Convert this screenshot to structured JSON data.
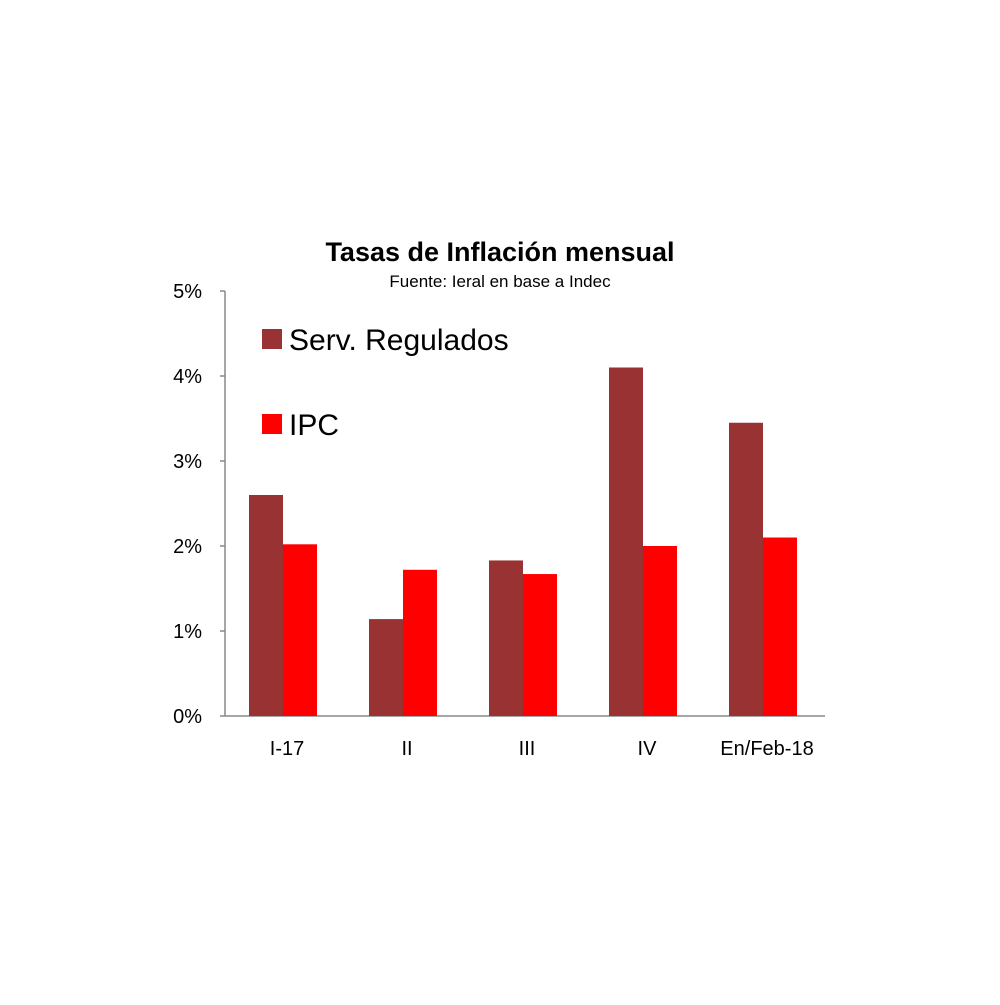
{
  "chart_data": {
    "type": "bar",
    "title": "Tasas de Inflación mensual",
    "subtitle": "Fuente: Ieral en base a Indec",
    "categories": [
      "I-17",
      "II",
      "III",
      "IV",
      "En/Feb-18"
    ],
    "series": [
      {
        "name": "Serv. Regulados",
        "color": "#993333",
        "values": [
          2.6,
          1.14,
          1.83,
          4.1,
          3.45
        ]
      },
      {
        "name": "IPC",
        "color": "#ff0000",
        "values": [
          2.02,
          1.72,
          1.67,
          2.0,
          2.1
        ]
      }
    ],
    "xlabel": "",
    "ylabel": "",
    "ylim": [
      0,
      5
    ],
    "yticks": [
      "0%",
      "1%",
      "2%",
      "3%",
      "4%",
      "5%"
    ],
    "grid": false,
    "legend_position": "top-left"
  }
}
